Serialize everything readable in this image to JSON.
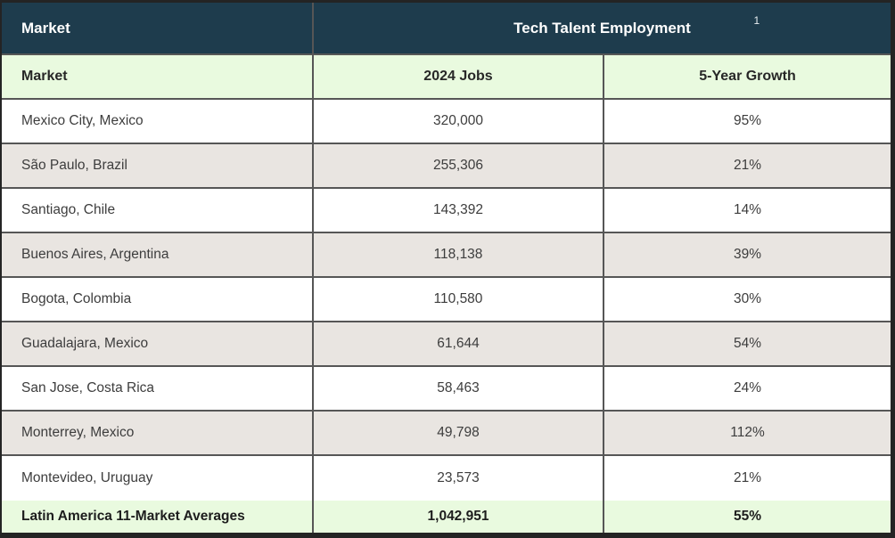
{
  "chart_data": {
    "type": "table",
    "title": "Tech Talent Employment",
    "footnote_marker": "1",
    "corner_label": "Market",
    "columns": [
      "Market",
      "2024 Jobs",
      "5-Year Growth"
    ],
    "rows": [
      [
        "Mexico City, Mexico",
        "320,000",
        "95%"
      ],
      [
        "São Paulo, Brazil",
        "255,306",
        "21%"
      ],
      [
        "Santiago, Chile",
        "143,392",
        "14%"
      ],
      [
        "Buenos Aires, Argentina",
        "118,138",
        "39%"
      ],
      [
        "Bogota, Colombia",
        "110,580",
        "30%"
      ],
      [
        "Guadalajara, Mexico",
        "61,644",
        "54%"
      ],
      [
        "San Jose, Costa Rica",
        "58,463",
        "24%"
      ],
      [
        "Monterrey, Mexico",
        "49,798",
        "112%"
      ],
      [
        "Montevideo, Uruguay",
        "23,573",
        "21%"
      ]
    ],
    "footer": [
      "Latin America 11-Market Averages",
      "1,042,951",
      "55%"
    ]
  },
  "colors": {
    "header_bg": "#1e3c4d",
    "header_text": "#ffffff",
    "subheader_bg": "#e9fadf",
    "stripe_bg": "#e9e5e1",
    "row_bg": "#ffffff",
    "grid_border": "#565656",
    "outer_border": "#242424",
    "body_text": "#3d3d3d"
  }
}
